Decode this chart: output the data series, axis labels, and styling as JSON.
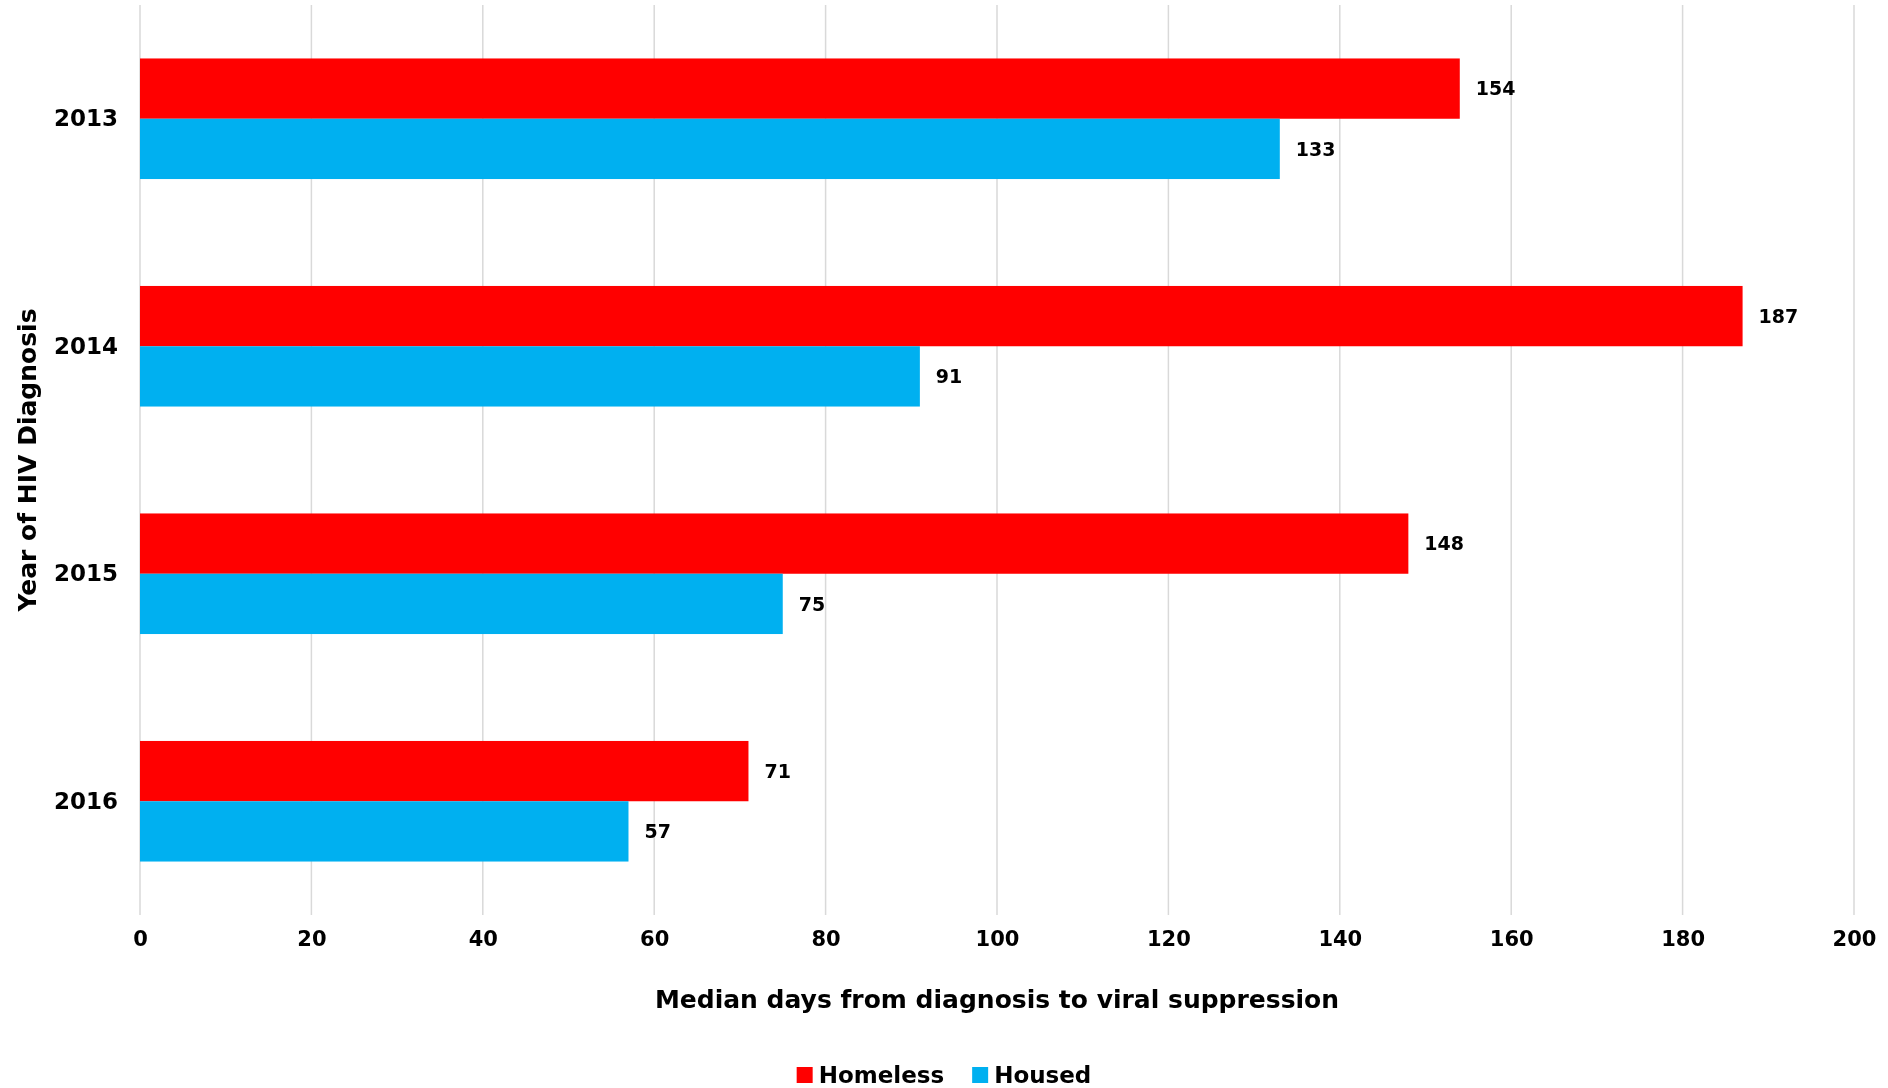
{
  "chart_data": {
    "type": "bar",
    "orientation": "horizontal",
    "xlabel": "Median days from diagnosis to viral suppression",
    "ylabel": "Year of HIV Diagnosis",
    "categories": [
      "2013",
      "2014",
      "2015",
      "2016"
    ],
    "series": [
      {
        "name": "Homeless",
        "color": "#ff0000",
        "values": [
          154,
          187,
          148,
          71
        ]
      },
      {
        "name": "Housed",
        "color": "#00b0f0",
        "values": [
          133,
          91,
          75,
          57
        ]
      }
    ],
    "xlim": [
      0,
      200
    ],
    "xticks": [
      0,
      20,
      40,
      60,
      80,
      100,
      120,
      140,
      160,
      180,
      200
    ],
    "grid": "x",
    "legend": "bottom",
    "data_labels": true
  }
}
